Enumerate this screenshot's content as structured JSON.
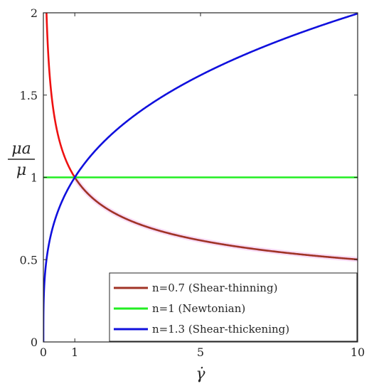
{
  "chart_data": {
    "type": "line",
    "xlabel": "γ̇",
    "ylabel_numerator": "μa",
    "ylabel_denominator": "μ",
    "xlim": [
      0,
      10
    ],
    "ylim": [
      0,
      2
    ],
    "xticks": [
      0,
      1,
      5,
      10
    ],
    "xtick_labels": [
      "0",
      "1",
      "5",
      "10"
    ],
    "yticks": [
      0,
      0.5,
      1,
      1.5,
      2
    ],
    "ytick_labels": [
      "0",
      "0.5",
      "1",
      "1.5",
      "2"
    ],
    "grid": false,
    "legend_placement": "bottom-right",
    "series": [
      {
        "name": "n=0.7 (Shear-thinning)",
        "power_law_index": 0.7,
        "color": "#ee1111",
        "color_after_crossing": "#a03326",
        "x": [
          0.1,
          0.2,
          0.3,
          0.5,
          0.75,
          1,
          1.5,
          2,
          3,
          4,
          5,
          6,
          7,
          8,
          9,
          10
        ],
        "y": [
          2.0,
          1.62,
          1.44,
          1.23,
          1.09,
          1.0,
          0.89,
          0.81,
          0.72,
          0.66,
          0.62,
          0.58,
          0.56,
          0.54,
          0.52,
          0.5
        ]
      },
      {
        "name": "n=1 (Newtonian)",
        "power_law_index": 1,
        "color": "#22ee22",
        "x": [
          0,
          10
        ],
        "y": [
          1,
          1
        ]
      },
      {
        "name": "n=1.3 (Shear-thickening)",
        "power_law_index": 1.3,
        "color": "#1010dd",
        "x": [
          0,
          0.01,
          0.05,
          0.1,
          0.25,
          0.5,
          1,
          2,
          3,
          4,
          5,
          6,
          7,
          8,
          9,
          10
        ],
        "y": [
          0,
          0.25,
          0.41,
          0.5,
          0.66,
          0.81,
          1.0,
          1.23,
          1.39,
          1.52,
          1.62,
          1.71,
          1.79,
          1.87,
          1.93,
          2.0
        ]
      }
    ]
  }
}
